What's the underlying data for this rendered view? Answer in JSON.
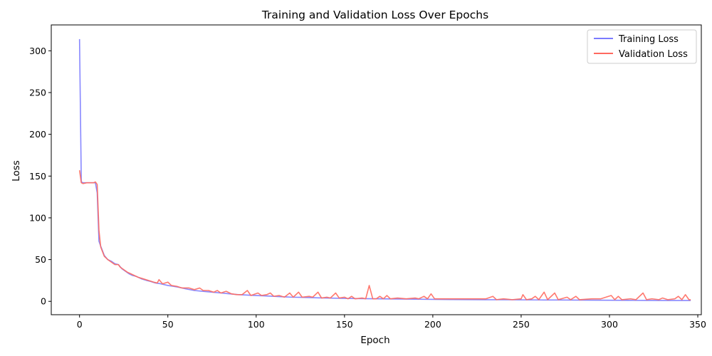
{
  "chart_data": {
    "type": "line",
    "title": "Training and Validation Loss Over Epochs",
    "xlabel": "Epoch",
    "ylabel": "Loss",
    "xlim": [
      -16,
      352
    ],
    "ylim": [
      -16,
      331
    ],
    "xticks": [
      0,
      50,
      100,
      150,
      200,
      250,
      300,
      350
    ],
    "yticks": [
      0,
      50,
      100,
      150,
      200,
      250,
      300
    ],
    "grid": false,
    "legend_position": "upper right",
    "series": [
      {
        "name": "Training Loss",
        "color": "#7b7bff",
        "points": [
          [
            0,
            314
          ],
          [
            1,
            143
          ],
          [
            2,
            142
          ],
          [
            3,
            142
          ],
          [
            5,
            142
          ],
          [
            7,
            142
          ],
          [
            9,
            142
          ],
          [
            10,
            130
          ],
          [
            11,
            72
          ],
          [
            12,
            66
          ],
          [
            14,
            55
          ],
          [
            16,
            50
          ],
          [
            18,
            48
          ],
          [
            20,
            45
          ],
          [
            22,
            44
          ],
          [
            24,
            39
          ],
          [
            26,
            36
          ],
          [
            28,
            33
          ],
          [
            30,
            31
          ],
          [
            32,
            30
          ],
          [
            35,
            27
          ],
          [
            38,
            25
          ],
          [
            40,
            24
          ],
          [
            43,
            22
          ],
          [
            46,
            21
          ],
          [
            50,
            19
          ],
          [
            53,
            18
          ],
          [
            56,
            17
          ],
          [
            60,
            15
          ],
          [
            65,
            13
          ],
          [
            70,
            12
          ],
          [
            75,
            11
          ],
          [
            80,
            10
          ],
          [
            85,
            9
          ],
          [
            90,
            8
          ],
          [
            95,
            7.5
          ],
          [
            100,
            7
          ],
          [
            105,
            6.5
          ],
          [
            110,
            6
          ],
          [
            115,
            5.5
          ],
          [
            120,
            5
          ],
          [
            125,
            4.8
          ],
          [
            130,
            4.5
          ],
          [
            135,
            4.2
          ],
          [
            140,
            4
          ],
          [
            150,
            3.5
          ],
          [
            160,
            3.2
          ],
          [
            170,
            3
          ],
          [
            180,
            2.8
          ],
          [
            190,
            2.6
          ],
          [
            200,
            2.4
          ],
          [
            210,
            2.2
          ],
          [
            220,
            2.1
          ],
          [
            230,
            2
          ],
          [
            240,
            1.9
          ],
          [
            250,
            1.8
          ],
          [
            260,
            1.7
          ],
          [
            270,
            1.6
          ],
          [
            280,
            1.5
          ],
          [
            290,
            1.4
          ],
          [
            300,
            1.3
          ],
          [
            310,
            1.2
          ],
          [
            320,
            1.1
          ],
          [
            330,
            1
          ],
          [
            340,
            1
          ],
          [
            346,
            1
          ]
        ]
      },
      {
        "name": "Validation Loss",
        "color": "#ff6a5f",
        "points": [
          [
            0,
            157
          ],
          [
            1,
            142
          ],
          [
            2,
            141
          ],
          [
            4,
            142
          ],
          [
            6,
            142
          ],
          [
            8,
            142
          ],
          [
            9,
            143
          ],
          [
            10,
            140
          ],
          [
            11,
            85
          ],
          [
            12,
            65
          ],
          [
            14,
            54
          ],
          [
            16,
            50
          ],
          [
            18,
            47
          ],
          [
            20,
            44
          ],
          [
            22,
            44
          ],
          [
            23,
            41
          ],
          [
            25,
            38
          ],
          [
            27,
            35
          ],
          [
            29,
            33
          ],
          [
            31,
            31
          ],
          [
            33,
            29
          ],
          [
            36,
            27
          ],
          [
            39,
            25
          ],
          [
            42,
            23
          ],
          [
            44,
            22
          ],
          [
            45,
            26
          ],
          [
            47,
            21
          ],
          [
            50,
            23
          ],
          [
            52,
            19
          ],
          [
            55,
            18
          ],
          [
            58,
            16
          ],
          [
            62,
            16
          ],
          [
            65,
            14
          ],
          [
            68,
            16
          ],
          [
            70,
            13
          ],
          [
            73,
            13
          ],
          [
            76,
            11
          ],
          [
            78,
            13
          ],
          [
            80,
            10
          ],
          [
            83,
            12
          ],
          [
            86,
            9
          ],
          [
            89,
            8
          ],
          [
            92,
            8
          ],
          [
            95,
            13
          ],
          [
            97,
            7
          ],
          [
            101,
            10
          ],
          [
            103,
            7
          ],
          [
            106,
            8
          ],
          [
            108,
            10
          ],
          [
            110,
            6
          ],
          [
            113,
            7
          ],
          [
            116,
            5
          ],
          [
            119,
            10
          ],
          [
            121,
            5
          ],
          [
            124,
            11
          ],
          [
            126,
            5
          ],
          [
            130,
            6
          ],
          [
            132,
            5
          ],
          [
            135,
            11
          ],
          [
            137,
            4
          ],
          [
            140,
            5
          ],
          [
            142,
            4
          ],
          [
            145,
            10
          ],
          [
            147,
            4
          ],
          [
            150,
            5
          ],
          [
            152,
            3
          ],
          [
            154,
            6
          ],
          [
            156,
            3
          ],
          [
            160,
            4
          ],
          [
            162,
            3
          ],
          [
            164,
            19
          ],
          [
            166,
            3
          ],
          [
            168,
            3
          ],
          [
            170,
            6
          ],
          [
            172,
            3
          ],
          [
            174,
            7
          ],
          [
            176,
            3
          ],
          [
            180,
            4
          ],
          [
            185,
            3
          ],
          [
            190,
            4
          ],
          [
            192,
            3
          ],
          [
            195,
            6
          ],
          [
            197,
            3
          ],
          [
            199,
            9
          ],
          [
            201,
            3
          ],
          [
            205,
            3
          ],
          [
            210,
            3
          ],
          [
            215,
            3
          ],
          [
            220,
            3
          ],
          [
            225,
            3
          ],
          [
            230,
            3
          ],
          [
            234,
            6
          ],
          [
            236,
            2
          ],
          [
            240,
            3
          ],
          [
            245,
            2
          ],
          [
            250,
            3
          ],
          [
            251,
            8
          ],
          [
            253,
            2
          ],
          [
            256,
            3
          ],
          [
            258,
            6
          ],
          [
            260,
            2
          ],
          [
            263,
            11
          ],
          [
            265,
            2
          ],
          [
            269,
            10
          ],
          [
            271,
            2
          ],
          [
            276,
            5
          ],
          [
            278,
            2
          ],
          [
            281,
            6
          ],
          [
            283,
            2
          ],
          [
            290,
            3
          ],
          [
            295,
            3
          ],
          [
            301,
            7
          ],
          [
            303,
            2
          ],
          [
            305,
            6
          ],
          [
            307,
            2
          ],
          [
            312,
            3
          ],
          [
            315,
            2
          ],
          [
            319,
            10
          ],
          [
            321,
            2
          ],
          [
            324,
            3
          ],
          [
            328,
            2
          ],
          [
            330,
            4
          ],
          [
            333,
            2
          ],
          [
            337,
            3
          ],
          [
            339,
            6
          ],
          [
            341,
            2
          ],
          [
            343,
            8
          ],
          [
            345,
            2
          ],
          [
            346,
            2
          ]
        ]
      }
    ]
  }
}
